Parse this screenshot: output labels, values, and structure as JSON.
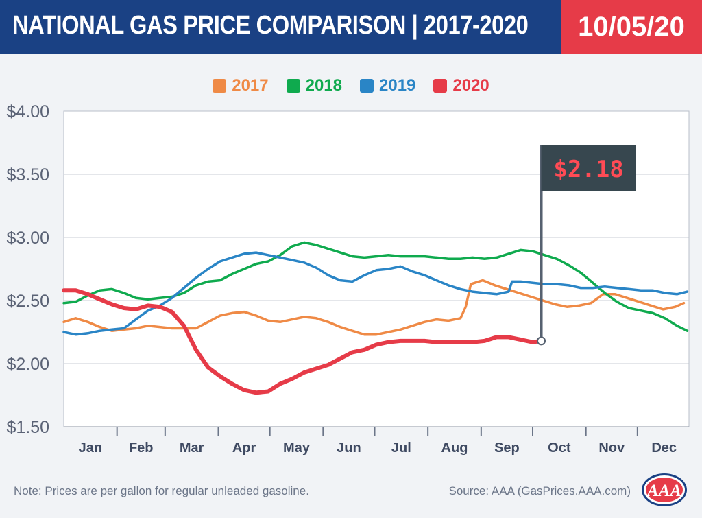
{
  "header": {
    "title": "NATIONAL GAS PRICE COMPARISON | 2017-2020",
    "date": "10/05/20"
  },
  "colors": {
    "header_bg": "#1a4184",
    "date_bg": "#e63b48",
    "2017": "#ef8a46",
    "2018": "#0faa4e",
    "2019": "#2a85c6",
    "2020": "#e63b48",
    "price_box": "#37474f",
    "price_text": "#ff4b55"
  },
  "chart_data": {
    "type": "line",
    "title": "NATIONAL GAS PRICE COMPARISON | 2017-2020",
    "xlabel": "",
    "ylabel": "",
    "ylim": [
      1.5,
      4.0
    ],
    "yticks": [
      "$4.00",
      "$3.50",
      "$3.00",
      "$2.50",
      "$2.00",
      "$1.50"
    ],
    "ytick_values": [
      4.0,
      3.5,
      3.0,
      2.5,
      2.0,
      1.5
    ],
    "months": [
      "Jan",
      "Feb",
      "Mar",
      "Apr",
      "May",
      "Jun",
      "Jul",
      "Aug",
      "Sep",
      "Oct",
      "Nov",
      "Dec"
    ],
    "grid": "horizontal",
    "legend_position": "top-center",
    "series": [
      {
        "name": "2017",
        "color": "#ef8a46",
        "x": [
          1,
          8,
          15,
          22,
          29,
          36,
          43,
          50,
          57,
          64,
          71,
          78,
          85,
          92,
          99,
          106,
          113,
          120,
          127,
          134,
          141,
          148,
          155,
          162,
          169,
          176,
          183,
          190,
          197,
          204,
          211,
          218,
          225,
          232,
          235,
          238,
          245,
          252,
          259,
          266,
          273,
          280,
          287,
          294,
          301,
          308,
          315,
          322,
          329,
          336,
          343,
          350,
          357,
          362
        ],
        "y": [
          2.33,
          2.36,
          2.33,
          2.29,
          2.26,
          2.27,
          2.28,
          2.3,
          2.29,
          2.28,
          2.28,
          2.28,
          2.33,
          2.38,
          2.4,
          2.41,
          2.38,
          2.34,
          2.33,
          2.35,
          2.37,
          2.36,
          2.33,
          2.29,
          2.26,
          2.23,
          2.23,
          2.25,
          2.27,
          2.3,
          2.33,
          2.35,
          2.34,
          2.36,
          2.45,
          2.63,
          2.66,
          2.62,
          2.59,
          2.56,
          2.53,
          2.5,
          2.47,
          2.45,
          2.46,
          2.48,
          2.55,
          2.55,
          2.52,
          2.49,
          2.46,
          2.43,
          2.45,
          2.48
        ]
      },
      {
        "name": "2018",
        "color": "#0faa4e",
        "x": [
          1,
          8,
          15,
          22,
          29,
          36,
          43,
          50,
          57,
          64,
          71,
          78,
          85,
          92,
          99,
          106,
          113,
          120,
          127,
          134,
          141,
          148,
          155,
          162,
          169,
          176,
          183,
          190,
          197,
          204,
          211,
          218,
          225,
          232,
          239,
          246,
          253,
          260,
          267,
          274,
          281,
          288,
          295,
          302,
          309,
          316,
          323,
          330,
          337,
          344,
          351,
          358,
          364
        ],
        "y": [
          2.48,
          2.49,
          2.54,
          2.58,
          2.59,
          2.56,
          2.52,
          2.51,
          2.52,
          2.53,
          2.56,
          2.62,
          2.65,
          2.66,
          2.71,
          2.75,
          2.79,
          2.81,
          2.86,
          2.93,
          2.96,
          2.94,
          2.91,
          2.88,
          2.85,
          2.84,
          2.85,
          2.86,
          2.85,
          2.85,
          2.85,
          2.84,
          2.83,
          2.83,
          2.84,
          2.83,
          2.84,
          2.87,
          2.9,
          2.89,
          2.86,
          2.83,
          2.78,
          2.72,
          2.64,
          2.56,
          2.49,
          2.44,
          2.42,
          2.4,
          2.36,
          2.3,
          2.26
        ]
      },
      {
        "name": "2019",
        "color": "#2a85c6",
        "x": [
          1,
          8,
          15,
          22,
          29,
          36,
          43,
          50,
          57,
          64,
          71,
          78,
          85,
          92,
          99,
          106,
          113,
          120,
          127,
          134,
          141,
          148,
          155,
          162,
          169,
          176,
          183,
          190,
          197,
          204,
          211,
          218,
          225,
          232,
          239,
          246,
          253,
          260,
          262,
          267,
          274,
          281,
          288,
          295,
          302,
          309,
          316,
          323,
          330,
          337,
          344,
          351,
          358,
          364
        ],
        "y": [
          2.25,
          2.23,
          2.24,
          2.26,
          2.27,
          2.28,
          2.35,
          2.42,
          2.46,
          2.52,
          2.6,
          2.68,
          2.75,
          2.81,
          2.84,
          2.87,
          2.88,
          2.86,
          2.84,
          2.82,
          2.8,
          2.76,
          2.7,
          2.66,
          2.65,
          2.7,
          2.74,
          2.75,
          2.77,
          2.73,
          2.7,
          2.66,
          2.62,
          2.59,
          2.57,
          2.56,
          2.55,
          2.57,
          2.65,
          2.65,
          2.64,
          2.63,
          2.63,
          2.62,
          2.6,
          2.6,
          2.61,
          2.6,
          2.59,
          2.58,
          2.58,
          2.56,
          2.55,
          2.57
        ]
      },
      {
        "name": "2020",
        "color": "#e63b48",
        "x": [
          1,
          8,
          15,
          22,
          29,
          36,
          43,
          50,
          57,
          64,
          71,
          78,
          85,
          92,
          99,
          106,
          113,
          120,
          127,
          134,
          141,
          148,
          155,
          162,
          169,
          176,
          183,
          190,
          197,
          204,
          211,
          218,
          225,
          232,
          239,
          246,
          253,
          260,
          267,
          274,
          279
        ],
        "y": [
          2.58,
          2.58,
          2.55,
          2.51,
          2.47,
          2.44,
          2.43,
          2.46,
          2.45,
          2.41,
          2.3,
          2.11,
          1.97,
          1.9,
          1.84,
          1.79,
          1.77,
          1.78,
          1.84,
          1.88,
          1.93,
          1.96,
          1.99,
          2.04,
          2.09,
          2.11,
          2.15,
          2.17,
          2.18,
          2.18,
          2.18,
          2.17,
          2.17,
          2.17,
          2.17,
          2.18,
          2.21,
          2.21,
          2.19,
          2.17,
          2.18
        ]
      }
    ],
    "annotation": {
      "label": "$2.18",
      "value": 2.18,
      "x": 279
    }
  },
  "footer": {
    "note": "Note: Prices are per gallon for regular unleaded gasoline.",
    "source": "Source: AAA (GasPrices.AAA.com)",
    "logo_text": "AAA"
  }
}
